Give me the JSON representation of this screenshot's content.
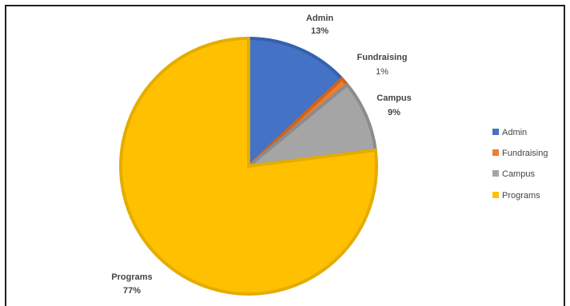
{
  "chart_data": {
    "type": "pie",
    "title": "",
    "slices": [
      {
        "name": "Admin",
        "value": 13,
        "label": "13%",
        "color": "#4472C4",
        "border": "#3560AD"
      },
      {
        "name": "Fundraising",
        "value": 1,
        "label": "1%",
        "color": "#ED7D31",
        "border": "#C86520"
      },
      {
        "name": "Campus",
        "value": 9,
        "label": "9%",
        "color": "#A5A5A5",
        "border": "#8C8C8C"
      },
      {
        "name": "Programs",
        "value": 77,
        "label": "77%",
        "color": "#FFC000",
        "border": "#E5AC00"
      }
    ],
    "start_angle_deg": 0,
    "direction": "clockwise",
    "legend": {
      "position": "right",
      "entries": [
        "Admin",
        "Fundraising",
        "Campus",
        "Programs"
      ]
    }
  }
}
